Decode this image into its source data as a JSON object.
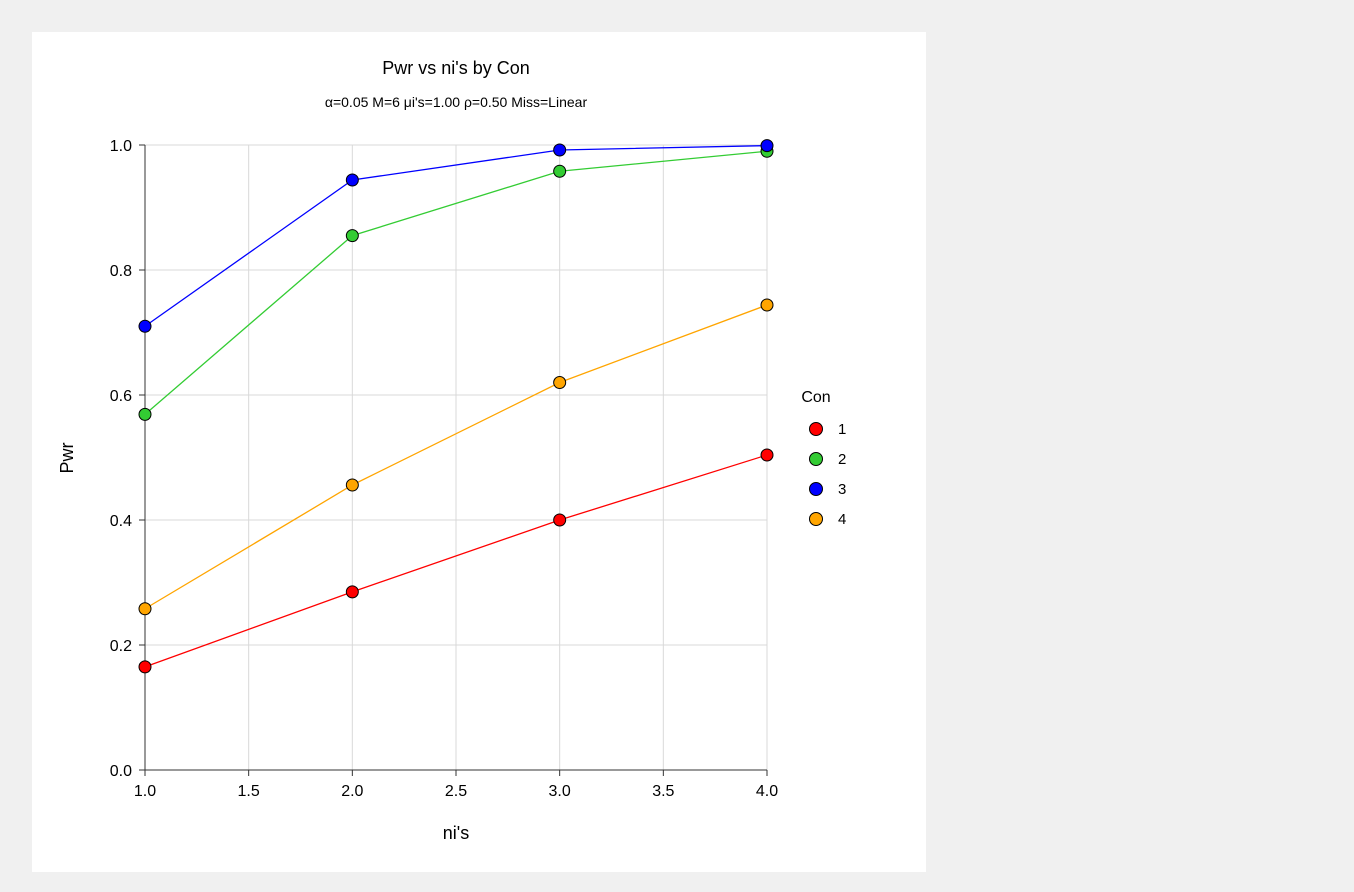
{
  "chart_data": {
    "type": "line",
    "title": "Pwr vs ni's by Con",
    "subtitle": "α=0.05 M=6 μi's=1.00 ρ=0.50 Miss=Linear",
    "xlabel": "ni's",
    "ylabel": "Pwr",
    "xlim": [
      1.0,
      4.0
    ],
    "ylim": [
      0.0,
      1.0
    ],
    "xticks": [
      "1.0",
      "1.5",
      "2.0",
      "2.5",
      "3.0",
      "3.5",
      "4.0"
    ],
    "yticks": [
      "0.0",
      "0.2",
      "0.4",
      "0.6",
      "0.8",
      "1.0"
    ],
    "grid": true,
    "legend_title": "Con",
    "legend_position": "right",
    "x": [
      1,
      2,
      3,
      4
    ],
    "series": [
      {
        "name": "1",
        "color": "#ff0000",
        "values": [
          0.165,
          0.285,
          0.4,
          0.504
        ]
      },
      {
        "name": "2",
        "color": "#33cc33",
        "values": [
          0.569,
          0.855,
          0.958,
          0.99
        ]
      },
      {
        "name": "3",
        "color": "#0000ff",
        "values": [
          0.71,
          0.944,
          0.992,
          0.999
        ]
      },
      {
        "name": "4",
        "color": "#ffa500",
        "values": [
          0.258,
          0.456,
          0.62,
          0.744
        ]
      }
    ]
  }
}
